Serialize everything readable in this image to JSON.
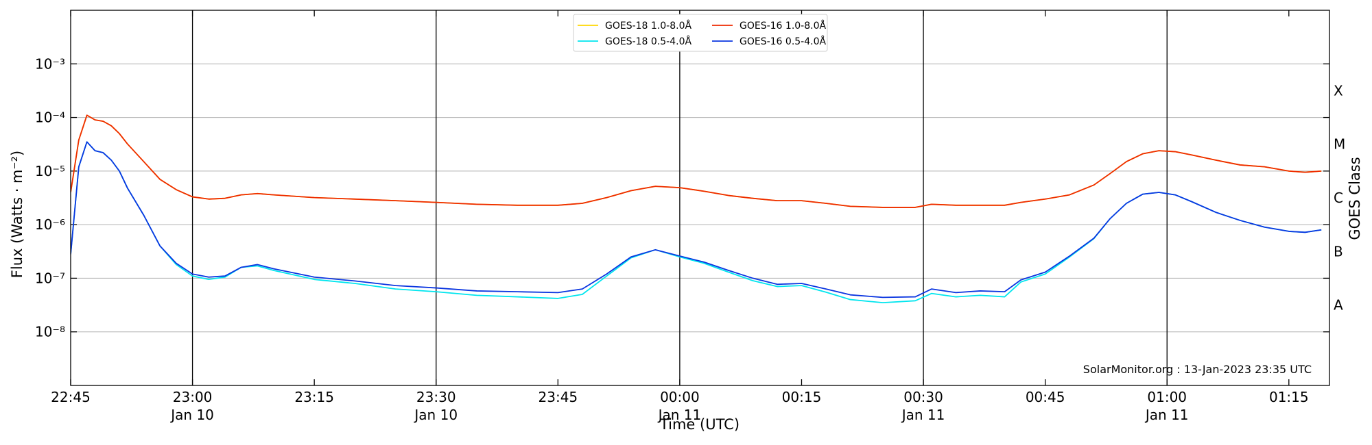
{
  "chart_data": {
    "type": "line",
    "xlabel": "Time (UTC)",
    "ylabel": "Flux (Watts · m⁻²)",
    "y2label": "GOES Class",
    "annotation": "SolarMonitor.org : 13-Jan-2023 23:35 UTC",
    "log_y": true,
    "grid": true,
    "legend": "upper center",
    "xlim": [
      "22:45",
      "01:20"
    ],
    "xticks": [
      "22:45",
      {
        "value": "23:00",
        "label": "23:00",
        "date": "Jan 10"
      },
      "23:15",
      {
        "value": "23:30",
        "label": "23:30",
        "date": "Jan 10"
      },
      "23:45",
      {
        "value": "00:00",
        "label": "00:00",
        "date": "Jan 11"
      },
      "00:15",
      {
        "value": "00:30",
        "label": "00:30",
        "date": "Jan 11"
      },
      "00:45",
      {
        "value": "01:00",
        "label": "01:00",
        "date": "Jan 11"
      },
      "01:15"
    ],
    "ylim": [
      1e-09,
      0.01
    ],
    "yticks": [
      {
        "value": 1e-08,
        "label": "10⁻⁸"
      },
      {
        "value": 1e-07,
        "label": "10⁻⁷"
      },
      {
        "value": 1e-06,
        "label": "10⁻⁶"
      },
      {
        "value": 1e-05,
        "label": "10⁻⁵"
      },
      {
        "value": 0.0001,
        "label": "10⁻⁴"
      },
      {
        "value": 0.001,
        "label": "10⁻³"
      }
    ],
    "y2lim": [
      1e-09,
      0.01
    ],
    "y2ticks": [
      {
        "value": 3.162e-08,
        "label": "A"
      },
      {
        "value": 3.162e-07,
        "label": "B"
      },
      {
        "value": 3.162e-06,
        "label": "C"
      },
      {
        "value": 3.162e-05,
        "label": "M"
      },
      {
        "value": 0.0003162,
        "label": "X"
      }
    ],
    "x": [
      "22:45",
      "22:46",
      "22:47",
      "22:48",
      "22:49",
      "22:50",
      "22:51",
      "22:52",
      "22:54",
      "22:56",
      "22:58",
      "23:00",
      "23:02",
      "23:04",
      "23:06",
      "23:08",
      "23:10",
      "23:15",
      "23:20",
      "23:25",
      "23:30",
      "23:35",
      "23:40",
      "23:45",
      "23:48",
      "23:51",
      "23:54",
      "23:57",
      "00:00",
      "00:03",
      "00:06",
      "00:09",
      "00:12",
      "00:15",
      "00:18",
      "00:21",
      "00:25",
      "00:29",
      "00:31",
      "00:34",
      "00:37",
      "00:40",
      "00:42",
      "00:45",
      "00:48",
      "00:51",
      "00:53",
      "00:55",
      "00:57",
      "00:59",
      "01:01",
      "01:03",
      "01:06",
      "01:09",
      "01:12",
      "01:15",
      "01:17",
      "01:19"
    ],
    "series": [
      {
        "name": "GOES-18 1.0-8.0Å",
        "color": "#ffd700",
        "values": [
          4e-06,
          3.8e-05,
          0.00011,
          9e-05,
          8.5e-05,
          7e-05,
          5e-05,
          3.2e-05,
          1.5e-05,
          7e-06,
          4.5e-06,
          3.3e-06,
          3e-06,
          3.1e-06,
          3.6e-06,
          3.8e-06,
          3.6e-06,
          3.2e-06,
          3e-06,
          2.8e-06,
          2.6e-06,
          2.4e-06,
          2.3e-06,
          2.3e-06,
          2.5e-06,
          3.2e-06,
          4.3e-06,
          5.2e-06,
          4.9e-06,
          4.2e-06,
          3.5e-06,
          3.1e-06,
          2.8e-06,
          2.8e-06,
          2.5e-06,
          2.2e-06,
          2.1e-06,
          2.1e-06,
          2.4e-06,
          2.3e-06,
          2.3e-06,
          2.3e-06,
          2.6e-06,
          3e-06,
          3.6e-06,
          5.5e-06,
          9e-06,
          1.5e-05,
          2.1e-05,
          2.4e-05,
          2.3e-05,
          2e-05,
          1.6e-05,
          1.3e-05,
          1.2e-05,
          1e-05,
          9.5e-06,
          1e-05
        ]
      },
      {
        "name": "GOES-18 0.5-4.0Å",
        "color": "#00e5ee",
        "values": [
          2.8e-07,
          1.2e-05,
          3.5e-05,
          2.4e-05,
          2.2e-05,
          1.6e-05,
          1e-05,
          4.8e-06,
          1.5e-06,
          4e-07,
          1.8e-07,
          1.1e-07,
          9.5e-08,
          1.05e-07,
          1.6e-07,
          1.7e-07,
          1.4e-07,
          9.5e-08,
          8e-08,
          6.3e-08,
          5.6e-08,
          4.8e-08,
          4.5e-08,
          4.2e-08,
          5e-08,
          1.1e-07,
          2.4e-07,
          3.4e-07,
          2.5e-07,
          1.9e-07,
          1.3e-07,
          9e-08,
          7e-08,
          7.3e-08,
          5.5e-08,
          4e-08,
          3.5e-08,
          3.8e-08,
          5.2e-08,
          4.5e-08,
          4.8e-08,
          4.5e-08,
          8.5e-08,
          1.2e-07,
          2.5e-07,
          5.5e-07,
          1.3e-06,
          2.5e-06,
          3.7e-06,
          4e-06,
          3.6e-06,
          2.7e-06,
          1.7e-06,
          1.2e-06,
          9e-07,
          7.5e-07,
          7.2e-07,
          8e-07
        ]
      },
      {
        "name": "GOES-16 1.0-8.0Å",
        "color": "#ee2a00",
        "values": [
          4e-06,
          3.8e-05,
          0.00011,
          9e-05,
          8.5e-05,
          7e-05,
          5e-05,
          3.2e-05,
          1.5e-05,
          7e-06,
          4.5e-06,
          3.3e-06,
          3e-06,
          3.1e-06,
          3.6e-06,
          3.8e-06,
          3.6e-06,
          3.2e-06,
          3e-06,
          2.8e-06,
          2.6e-06,
          2.4e-06,
          2.3e-06,
          2.3e-06,
          2.5e-06,
          3.2e-06,
          4.3e-06,
          5.2e-06,
          4.9e-06,
          4.2e-06,
          3.5e-06,
          3.1e-06,
          2.8e-06,
          2.8e-06,
          2.5e-06,
          2.2e-06,
          2.1e-06,
          2.1e-06,
          2.4e-06,
          2.3e-06,
          2.3e-06,
          2.3e-06,
          2.6e-06,
          3e-06,
          3.6e-06,
          5.5e-06,
          9e-06,
          1.5e-05,
          2.1e-05,
          2.4e-05,
          2.3e-05,
          2e-05,
          1.6e-05,
          1.3e-05,
          1.2e-05,
          1e-05,
          9.5e-06,
          1e-05
        ]
      },
      {
        "name": "GOES-16 0.5-4.0Å",
        "color": "#0a35e0",
        "values": [
          2.8e-07,
          1.2e-05,
          3.5e-05,
          2.4e-05,
          2.2e-05,
          1.6e-05,
          1e-05,
          4.8e-06,
          1.5e-06,
          4e-07,
          1.9e-07,
          1.2e-07,
          1.05e-07,
          1.1e-07,
          1.6e-07,
          1.8e-07,
          1.5e-07,
          1.05e-07,
          8.9e-08,
          7.3e-08,
          6.6e-08,
          5.8e-08,
          5.6e-08,
          5.4e-08,
          6.3e-08,
          1.2e-07,
          2.5e-07,
          3.4e-07,
          2.6e-07,
          2e-07,
          1.4e-07,
          1e-07,
          7.7e-08,
          8e-08,
          6.3e-08,
          4.9e-08,
          4.4e-08,
          4.5e-08,
          6.3e-08,
          5.4e-08,
          5.8e-08,
          5.6e-08,
          9.3e-08,
          1.3e-07,
          2.6e-07,
          5.6e-07,
          1.3e-06,
          2.5e-06,
          3.7e-06,
          4e-06,
          3.6e-06,
          2.7e-06,
          1.7e-06,
          1.2e-06,
          9e-07,
          7.5e-07,
          7.2e-07,
          8e-07
        ]
      }
    ]
  }
}
